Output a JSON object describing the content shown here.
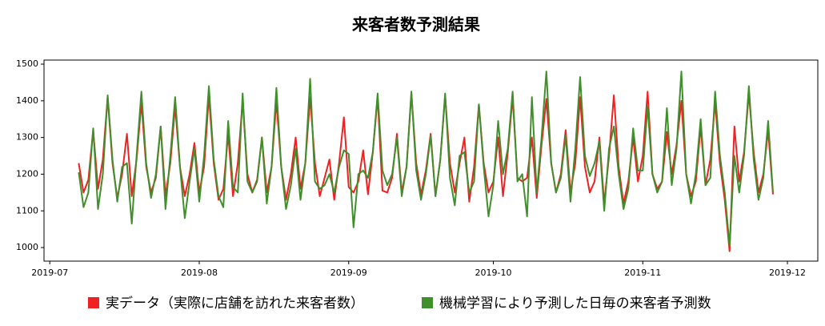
{
  "chart_data": {
    "type": "line",
    "title": "来客者数予測結果",
    "x": [
      6,
      7,
      8,
      9,
      10,
      11,
      12,
      13,
      14,
      15,
      16,
      17,
      18,
      19,
      20,
      21,
      22,
      23,
      24,
      25,
      26,
      27,
      28,
      29,
      30,
      31,
      32,
      33,
      34,
      35,
      36,
      37,
      38,
      39,
      40,
      41,
      42,
      43,
      44,
      45,
      46,
      47,
      48,
      49,
      50,
      51,
      52,
      53,
      54,
      55,
      56,
      57,
      58,
      59,
      60,
      61,
      62,
      63,
      64,
      65,
      66,
      67,
      68,
      69,
      70,
      71,
      72,
      73,
      74,
      75,
      76,
      77,
      78,
      79,
      80,
      81,
      82,
      83,
      84,
      85,
      86,
      87,
      88,
      89,
      90,
      91,
      92,
      93,
      94,
      95,
      96,
      97,
      98,
      99,
      100,
      101,
      102,
      103,
      104,
      105,
      106,
      107,
      108,
      109,
      110,
      111,
      112,
      113,
      114,
      115,
      116,
      117,
      118,
      119,
      120,
      121,
      122,
      123,
      124,
      125,
      126,
      127,
      128,
      129,
      130,
      131,
      132,
      133,
      134,
      135,
      136,
      137,
      138,
      139,
      140,
      141,
      142,
      143,
      144,
      145,
      146,
      147,
      148,
      149,
      150
    ],
    "series": [
      {
        "name": "実データ（実際に店舗を訪れた来客者数）",
        "color": "#ee2222",
        "values": [
          1230,
          1150,
          1185,
          1320,
          1160,
          1240,
          1410,
          1230,
          1135,
          1200,
          1310,
          1140,
          1240,
          1395,
          1220,
          1150,
          1190,
          1330,
          1140,
          1230,
          1385,
          1220,
          1140,
          1200,
          1285,
          1150,
          1220,
          1415,
          1230,
          1130,
          1160,
          1310,
          1140,
          1230,
          1400,
          1200,
          1150,
          1185,
          1300,
          1150,
          1220,
          1400,
          1220,
          1130,
          1200,
          1300,
          1160,
          1230,
          1410,
          1230,
          1140,
          1190,
          1240,
          1130,
          1230,
          1355,
          1165,
          1150,
          1180,
          1265,
          1145,
          1260,
          1410,
          1155,
          1150,
          1190,
          1310,
          1150,
          1220,
          1420,
          1230,
          1145,
          1210,
          1310,
          1140,
          1240,
          1415,
          1230,
          1150,
          1230,
          1300,
          1125,
          1220,
          1390,
          1230,
          1150,
          1180,
          1300,
          1140,
          1260,
          1410,
          1190,
          1180,
          1190,
          1300,
          1135,
          1280,
          1405,
          1230,
          1150,
          1200,
          1320,
          1150,
          1230,
          1410,
          1220,
          1150,
          1180,
          1300,
          1120,
          1250,
          1415,
          1220,
          1120,
          1180,
          1300,
          1180,
          1250,
          1425,
          1200,
          1160,
          1180,
          1315,
          1200,
          1280,
          1400,
          1200,
          1140,
          1180,
          1330,
          1170,
          1240,
          1395,
          1230,
          1130,
          990,
          1330,
          1180,
          1260,
          1420,
          1260,
          1150,
          1200,
          1320,
          1145
        ]
      },
      {
        "name": "機械学習により予測した日毎の来客者予測数",
        "color": "#3f8f2a",
        "values": [
          1205,
          1110,
          1150,
          1325,
          1105,
          1200,
          1415,
          1240,
          1125,
          1220,
          1230,
          1065,
          1250,
          1425,
          1230,
          1135,
          1200,
          1330,
          1105,
          1250,
          1410,
          1220,
          1080,
          1180,
          1270,
          1125,
          1250,
          1440,
          1240,
          1140,
          1110,
          1345,
          1165,
          1150,
          1420,
          1180,
          1150,
          1180,
          1300,
          1120,
          1220,
          1435,
          1220,
          1105,
          1170,
          1270,
          1130,
          1230,
          1460,
          1180,
          1160,
          1170,
          1200,
          1150,
          1220,
          1265,
          1255,
          1055,
          1200,
          1210,
          1190,
          1260,
          1420,
          1210,
          1170,
          1200,
          1300,
          1140,
          1220,
          1425,
          1210,
          1130,
          1200,
          1305,
          1140,
          1240,
          1420,
          1190,
          1115,
          1250,
          1260,
          1150,
          1180,
          1390,
          1220,
          1085,
          1170,
          1345,
          1200,
          1270,
          1425,
          1180,
          1200,
          1085,
          1410,
          1150,
          1300,
          1480,
          1230,
          1150,
          1190,
          1305,
          1125,
          1270,
          1465,
          1250,
          1195,
          1230,
          1290,
          1100,
          1270,
          1330,
          1200,
          1105,
          1160,
          1325,
          1210,
          1210,
          1385,
          1200,
          1150,
          1180,
          1380,
          1170,
          1270,
          1480,
          1200,
          1120,
          1200,
          1350,
          1170,
          1190,
          1425,
          1250,
          1150,
          1005,
          1250,
          1150,
          1250,
          1440,
          1240,
          1130,
          1190,
          1345,
          1150
        ]
      }
    ],
    "xlim": [
      -1.2,
      159.3
    ],
    "xticks": [
      {
        "value": 0,
        "label": "2019-07"
      },
      {
        "value": 31,
        "label": "2019-08"
      },
      {
        "value": 62,
        "label": "2019-09"
      },
      {
        "value": 92,
        "label": "2019-10"
      },
      {
        "value": 123,
        "label": "2019-11"
      },
      {
        "value": 153,
        "label": "2019-12"
      }
    ],
    "ylim": [
      963,
      1511
    ],
    "yticks": [
      1000,
      1100,
      1200,
      1300,
      1400,
      1500
    ],
    "grid": false,
    "legend": "bottom"
  }
}
